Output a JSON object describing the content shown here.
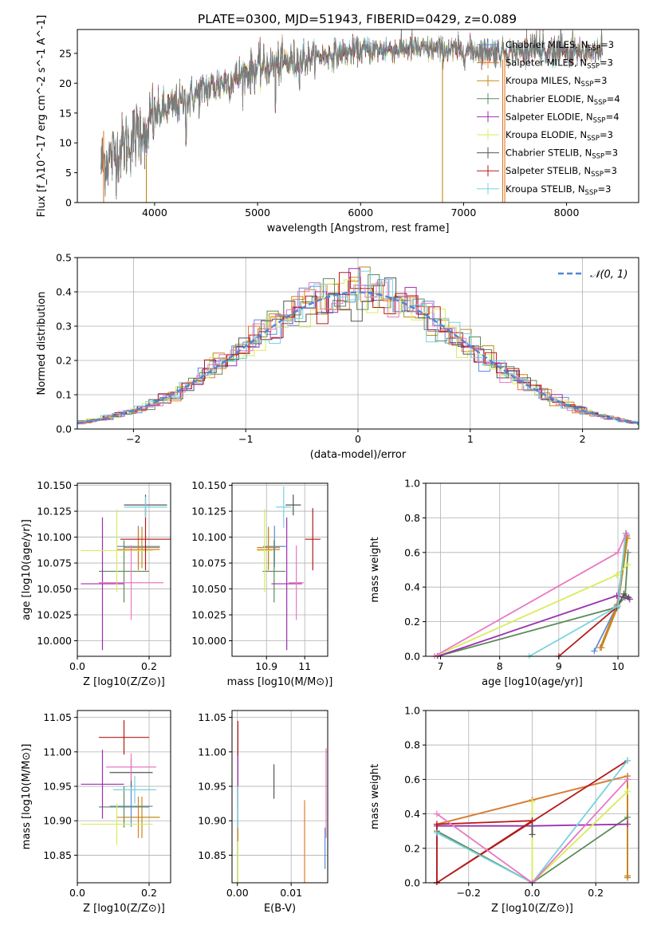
{
  "figure": {
    "title": "PLATE=0300, MJD=51943, FIBERID=0429, z=0.089"
  },
  "model_colors": {
    "Chabrier MILES": "#5b8fd6",
    "Salpeter MILES": "#e07b2a",
    "Kroupa MILES": "#c08a16",
    "Chabrier ELODIE": "#5c8a5c",
    "Salpeter ELODIE": "#9b2fb0",
    "Kroupa ELODIE": "#d9ec5a",
    "Chabrier STELIB": "#555555",
    "Salpeter STELIB": "#b51a1a",
    "Kroupa STELIB": "#76d3de",
    "pink": "#e879c3",
    "normal_curve": "#4f86d6"
  },
  "chart_data": [
    {
      "id": "spectrum",
      "type": "line",
      "xlabel": "wavelength [Angstrom, rest frame]",
      "ylabel": "Flux [f_λ10^-17 erg cm^-2 s^-1 A^-1]",
      "xlim": [
        3250,
        8700
      ],
      "ylim": [
        0,
        29
      ],
      "xticks": [
        4000,
        5000,
        6000,
        7000,
        8000
      ],
      "yticks": [
        0,
        5,
        10,
        15,
        20,
        25
      ],
      "grid": false,
      "legend_position": "upper right",
      "legend": [
        {
          "text": "Chabrier MILES, N",
          "sub": "SSP",
          "suffix": "=3",
          "color": "#5b8fd6"
        },
        {
          "text": "Salpeter MILES, N",
          "sub": "SSP",
          "suffix": "=3",
          "color": "#e07b2a"
        },
        {
          "text": "Kroupa MILES, N",
          "sub": "SSP",
          "suffix": "=3",
          "color": "#c08a16"
        },
        {
          "text": "Chabrier ELODIE, N",
          "sub": "SSP",
          "suffix": "=4",
          "color": "#5c8a5c"
        },
        {
          "text": "Salpeter ELODIE, N",
          "sub": "SSP",
          "suffix": "=4",
          "color": "#9b2fb0"
        },
        {
          "text": "Kroupa ELODIE, N",
          "sub": "SSP",
          "suffix": "=3",
          "color": "#d9ec5a"
        },
        {
          "text": "Chabrier STELIB, N",
          "sub": "SSP",
          "suffix": "=3",
          "color": "#555555"
        },
        {
          "text": "Salpeter STELIB, N",
          "sub": "SSP",
          "suffix": "=3",
          "color": "#b51a1a"
        },
        {
          "text": "Kroupa STELIB, N",
          "sub": "SSP",
          "suffix": "=3",
          "color": "#76d3de"
        }
      ],
      "continuum": [
        [
          3480,
          6.5
        ],
        [
          3600,
          8
        ],
        [
          3800,
          11
        ],
        [
          3950,
          14
        ],
        [
          4100,
          15.5
        ],
        [
          4300,
          17
        ],
        [
          4500,
          19
        ],
        [
          4800,
          21
        ],
        [
          5000,
          22.5
        ],
        [
          5300,
          23.5
        ],
        [
          5600,
          24.5
        ],
        [
          6000,
          25.5
        ],
        [
          6500,
          25.8
        ],
        [
          7000,
          25.5
        ],
        [
          7500,
          25.3
        ],
        [
          8000,
          25.0
        ],
        [
          8350,
          25.5
        ]
      ],
      "spikes": [
        {
          "x": 3505,
          "ymin": 0,
          "ymax": 12,
          "color": "#e07b2a"
        },
        {
          "x": 3920,
          "ymin": 0,
          "ymax": 8,
          "color": "#c08a16"
        },
        {
          "x": 6795,
          "ymin": 0,
          "ymax": 24,
          "color": "#c08a16"
        },
        {
          "x": 7400,
          "ymin": 0,
          "ymax": 25,
          "color": "#e07b2a"
        },
        {
          "x": 7380,
          "ymin": 0,
          "ymax": 24,
          "color": "#e07b2a"
        }
      ]
    },
    {
      "id": "residual_hist",
      "type": "step",
      "xlabel": "(data-model)/error",
      "ylabel": "Normed distribution",
      "xlim": [
        -2.5,
        2.5
      ],
      "ylim": [
        0,
        0.5
      ],
      "xticks": [
        -2,
        -1,
        0,
        1,
        2
      ],
      "yticks": [
        0.0,
        0.1,
        0.2,
        0.3,
        0.4,
        0.5
      ],
      "grid": true,
      "legend_position": "upper right",
      "legend_label": "𝒩(0, 1)",
      "bin_width": 0.1,
      "reference": "normal pdf, mean 0, sigma 1"
    },
    {
      "id": "z_age",
      "type": "errorbar",
      "xlabel": "Z [log10(Z/Z⊙)]",
      "ylabel": "age [log10(age/yr)]",
      "xlim": [
        0.0,
        0.26
      ],
      "ylim": [
        9.985,
        10.152
      ],
      "xticks": [
        0.0,
        0.2
      ],
      "yticks": [
        10.0,
        10.025,
        10.05,
        10.075,
        10.1,
        10.125,
        10.15
      ],
      "grid": true,
      "points": [
        {
          "x": 0.17,
          "xerr": 0.06,
          "y": 10.091,
          "yerr": 0.02,
          "color": "#5b8fd6"
        },
        {
          "x": 0.17,
          "xerr": 0.06,
          "y": 10.088,
          "yerr": 0.02,
          "color": "#e07b2a"
        },
        {
          "x": 0.18,
          "xerr": 0.05,
          "y": 10.09,
          "yerr": 0.02,
          "color": "#c08a16"
        },
        {
          "x": 0.13,
          "xerr": 0.07,
          "y": 10.067,
          "yerr": 0.03,
          "color": "#5c8a5c"
        },
        {
          "x": 0.07,
          "xerr": 0.06,
          "y": 10.055,
          "yerr": 0.064,
          "color": "#9b2fb0"
        },
        {
          "x": 0.11,
          "xerr": 0.1,
          "y": 10.087,
          "yerr": 0.04,
          "color": "#d9ec5a"
        },
        {
          "x": 0.19,
          "xerr": 0.06,
          "y": 10.131,
          "yerr": 0.01,
          "color": "#555555"
        },
        {
          "x": 0.19,
          "xerr": 0.07,
          "y": 10.098,
          "yerr": 0.03,
          "color": "#b51a1a"
        },
        {
          "x": 0.19,
          "xerr": 0.06,
          "y": 10.129,
          "yerr": 0.01,
          "color": "#76d3de"
        },
        {
          "x": 0.15,
          "xerr": 0.09,
          "y": 10.056,
          "yerr": 0.036,
          "color": "#e879c3"
        }
      ]
    },
    {
      "id": "mass_age",
      "type": "errorbar",
      "xlabel": "mass [log10(M/M⊙)]",
      "ylabel": "",
      "xlim": [
        10.81,
        11.06
      ],
      "ylim": [
        9.985,
        10.152
      ],
      "xticks": [
        10.9,
        11.0
      ],
      "yticks": [
        10.0,
        10.025,
        10.05,
        10.075,
        10.1,
        10.125,
        10.15
      ],
      "grid": true,
      "points": [
        {
          "x": 10.921,
          "xerr": 0.03,
          "y": 10.091,
          "yerr": 0.02,
          "color": "#5b8fd6"
        },
        {
          "x": 10.905,
          "xerr": 0.03,
          "y": 10.088,
          "yerr": 0.02,
          "color": "#e07b2a"
        },
        {
          "x": 10.905,
          "xerr": 0.03,
          "y": 10.09,
          "yerr": 0.02,
          "color": "#c08a16"
        },
        {
          "x": 10.92,
          "xerr": 0.03,
          "y": 10.067,
          "yerr": 0.03,
          "color": "#5c8a5c"
        },
        {
          "x": 10.953,
          "xerr": 0.04,
          "y": 10.055,
          "yerr": 0.064,
          "color": "#9b2fb0"
        },
        {
          "x": 10.895,
          "xerr": 0.02,
          "y": 10.087,
          "yerr": 0.04,
          "color": "#d9ec5a"
        },
        {
          "x": 10.97,
          "xerr": 0.02,
          "y": 10.131,
          "yerr": 0.01,
          "color": "#555555"
        },
        {
          "x": 11.021,
          "xerr": 0.02,
          "y": 10.098,
          "yerr": 0.03,
          "color": "#b51a1a"
        },
        {
          "x": 10.945,
          "xerr": 0.02,
          "y": 10.129,
          "yerr": 0.02,
          "color": "#76d3de"
        },
        {
          "x": 10.978,
          "xerr": 0.02,
          "y": 10.056,
          "yerr": 0.036,
          "color": "#e879c3"
        }
      ]
    },
    {
      "id": "age_weight",
      "type": "line",
      "xlabel": "age [log10(age/yr)]",
      "ylabel": "mass weight",
      "xlim": [
        6.75,
        10.35
      ],
      "ylim": [
        0.0,
        1.0
      ],
      "xticks": [
        7,
        8,
        9,
        10
      ],
      "yticks": [
        0.0,
        0.2,
        0.4,
        0.6,
        0.8,
        1.0
      ],
      "grid": true,
      "series": [
        {
          "color": "#5b8fd6",
          "points": [
            [
              9.6,
              0.03
            ],
            [
              9.98,
              0.29
            ],
            [
              10.15,
              0.7
            ]
          ]
        },
        {
          "color": "#e07b2a",
          "points": [
            [
              9.7,
              0.05
            ],
            [
              9.99,
              0.3
            ],
            [
              10.15,
              0.69
            ]
          ]
        },
        {
          "color": "#c08a16",
          "points": [
            [
              9.72,
              0.05
            ],
            [
              10.0,
              0.29
            ],
            [
              10.16,
              0.68
            ]
          ]
        },
        {
          "color": "#5c8a5c",
          "points": [
            [
              6.95,
              0.0
            ],
            [
              9.95,
              0.28
            ],
            [
              10.12,
              0.34
            ],
            [
              10.17,
              0.6
            ]
          ]
        },
        {
          "color": "#9b2fb0",
          "points": [
            [
              6.95,
              0.0
            ],
            [
              9.98,
              0.35
            ],
            [
              10.2,
              0.33
            ]
          ]
        },
        {
          "color": "#d9ec5a",
          "points": [
            [
              6.9,
              0.0
            ],
            [
              9.98,
              0.47
            ],
            [
              10.17,
              0.53
            ]
          ]
        },
        {
          "color": "#555555",
          "points": [
            [
              9.98,
              0.28
            ],
            [
              10.1,
              0.36
            ],
            [
              10.18,
              0.34
            ]
          ]
        },
        {
          "color": "#b51a1a",
          "points": [
            [
              9.0,
              0.0
            ],
            [
              10.0,
              0.29
            ],
            [
              10.13,
              0.71
            ]
          ]
        },
        {
          "color": "#76d3de",
          "points": [
            [
              8.5,
              0.0
            ],
            [
              10.0,
              0.29
            ],
            [
              10.13,
              0.71
            ]
          ]
        },
        {
          "color": "#e879c3",
          "points": [
            [
              6.9,
              0.0
            ],
            [
              10.0,
              0.6
            ],
            [
              10.14,
              0.71
            ]
          ]
        }
      ]
    },
    {
      "id": "z_mass",
      "type": "errorbar",
      "xlabel": "Z [log10(Z/Z⊙)]",
      "ylabel": "mass [log10(M/M⊙)]",
      "xlim": [
        0.0,
        0.26
      ],
      "ylim": [
        10.81,
        11.06
      ],
      "xticks": [
        0.0,
        0.2
      ],
      "yticks": [
        10.85,
        10.9,
        10.95,
        11.0,
        11.05
      ],
      "grid": true,
      "points": [
        {
          "x": 0.15,
          "xerr": 0.06,
          "y": 10.921,
          "yerr": 0.03,
          "color": "#5b8fd6"
        },
        {
          "x": 0.17,
          "xerr": 0.06,
          "y": 10.905,
          "yerr": 0.03,
          "color": "#e07b2a"
        },
        {
          "x": 0.18,
          "xerr": 0.05,
          "y": 10.905,
          "yerr": 0.03,
          "color": "#c08a16"
        },
        {
          "x": 0.13,
          "xerr": 0.07,
          "y": 10.92,
          "yerr": 0.03,
          "color": "#5c8a5c"
        },
        {
          "x": 0.07,
          "xerr": 0.06,
          "y": 10.953,
          "yerr": 0.05,
          "color": "#9b2fb0"
        },
        {
          "x": 0.11,
          "xerr": 0.1,
          "y": 10.895,
          "yerr": 0.03,
          "color": "#d9ec5a"
        },
        {
          "x": 0.15,
          "xerr": 0.06,
          "y": 10.97,
          "yerr": 0.02,
          "color": "#555555"
        },
        {
          "x": 0.13,
          "xerr": 0.07,
          "y": 11.021,
          "yerr": 0.025,
          "color": "#b51a1a"
        },
        {
          "x": 0.16,
          "xerr": 0.06,
          "y": 10.945,
          "yerr": 0.02,
          "color": "#76d3de"
        },
        {
          "x": 0.15,
          "xerr": 0.07,
          "y": 10.978,
          "yerr": 0.02,
          "color": "#e879c3"
        }
      ]
    },
    {
      "id": "ebv_mass",
      "type": "errorbar",
      "xlabel": "E(B-V)",
      "ylabel": "",
      "xlim": [
        -0.001,
        0.0168
      ],
      "ylim": [
        10.81,
        11.06
      ],
      "xticks": [
        0.0,
        0.01
      ],
      "yticks": [
        10.85,
        10.9,
        10.95,
        11.0,
        11.05
      ],
      "grid": true,
      "points": [
        {
          "x": 0.0163,
          "xerr": 0,
          "y": 10.86,
          "yerr": 0.03,
          "color": "#5b8fd6"
        },
        {
          "x": 0.0125,
          "xerr": 0,
          "y": 10.87,
          "yerr": 0.06,
          "color": "#e07b2a"
        },
        {
          "x": 0.0001,
          "xerr": 0,
          "y": 10.86,
          "yerr": 0.04,
          "color": "#c08a16"
        },
        {
          "x": 0.0001,
          "xerr": 0,
          "y": 10.92,
          "yerr": 0.03,
          "color": "#5c8a5c"
        },
        {
          "x": 0.0001,
          "xerr": 0,
          "y": 10.96,
          "yerr": 0.04,
          "color": "#9b2fb0"
        },
        {
          "x": 0.0001,
          "xerr": 0,
          "y": 10.84,
          "yerr": 0.03,
          "color": "#d9ec5a"
        },
        {
          "x": 0.0068,
          "xerr": 0,
          "y": 10.957,
          "yerr": 0.025,
          "color": "#555555"
        },
        {
          "x": 0.0001,
          "xerr": 0,
          "y": 11.02,
          "yerr": 0.025,
          "color": "#b51a1a"
        },
        {
          "x": 0.0001,
          "xerr": 0,
          "y": 10.92,
          "yerr": 0.03,
          "color": "#76d3de"
        },
        {
          "x": 0.0165,
          "xerr": 0,
          "y": 10.94,
          "yerr": 0.065,
          "color": "#e879c3"
        }
      ]
    },
    {
      "id": "z_weight",
      "type": "line",
      "xlabel": "Z [log10(Z/Z⊙)]",
      "ylabel": "mass weight",
      "xlim": [
        -0.335,
        0.335
      ],
      "ylim": [
        0.0,
        1.0
      ],
      "xticks": [
        -0.2,
        0.0,
        0.2
      ],
      "yticks": [
        0.0,
        0.2,
        0.4,
        0.6,
        0.8,
        1.0
      ],
      "grid": true,
      "series": [
        {
          "color": "#5b8fd6",
          "points": [
            [
              -0.3,
              0.34
            ],
            [
              0.0,
              0.48
            ],
            [
              0.3,
              0.62
            ],
            [
              0.3,
              0.03
            ]
          ]
        },
        {
          "color": "#e07b2a",
          "points": [
            [
              -0.3,
              0.34
            ],
            [
              0.0,
              0.48
            ],
            [
              0.3,
              0.62
            ],
            [
              0.3,
              0.04
            ]
          ]
        },
        {
          "color": "#c08a16",
          "points": [
            [
              0.3,
              0.03
            ],
            [
              0.3,
              0.62
            ]
          ]
        },
        {
          "color": "#5c8a5c",
          "points": [
            [
              -0.3,
              0.3
            ],
            [
              0.0,
              0.0
            ],
            [
              0.3,
              0.38
            ]
          ]
        },
        {
          "color": "#9b2fb0",
          "points": [
            [
              -0.3,
              0.0
            ],
            [
              -0.3,
              0.33
            ],
            [
              0.0,
              0.33
            ],
            [
              0.3,
              0.34
            ]
          ]
        },
        {
          "color": "#d9ec5a",
          "points": [
            [
              0.0,
              0.47
            ],
            [
              0.0,
              0.0
            ],
            [
              0.3,
              0.53
            ]
          ]
        },
        {
          "color": "#555555",
          "points": [
            [
              0.0,
              0.28
            ],
            [
              0.0,
              0.36
            ]
          ]
        },
        {
          "color": "#b51a1a",
          "points": [
            [
              -0.3,
              0.0
            ],
            [
              -0.3,
              0.34
            ],
            [
              0.0,
              0.36
            ],
            [
              -0.3,
              0.0
            ],
            [
              0.3,
              0.71
            ]
          ]
        },
        {
          "color": "#76d3de",
          "points": [
            [
              -0.3,
              0.29
            ],
            [
              0.0,
              0.0
            ],
            [
              0.3,
              0.71
            ]
          ]
        },
        {
          "color": "#e879c3",
          "points": [
            [
              -0.3,
              0.4
            ],
            [
              0.0,
              0.0
            ],
            [
              0.3,
              0.6
            ]
          ]
        }
      ]
    }
  ]
}
